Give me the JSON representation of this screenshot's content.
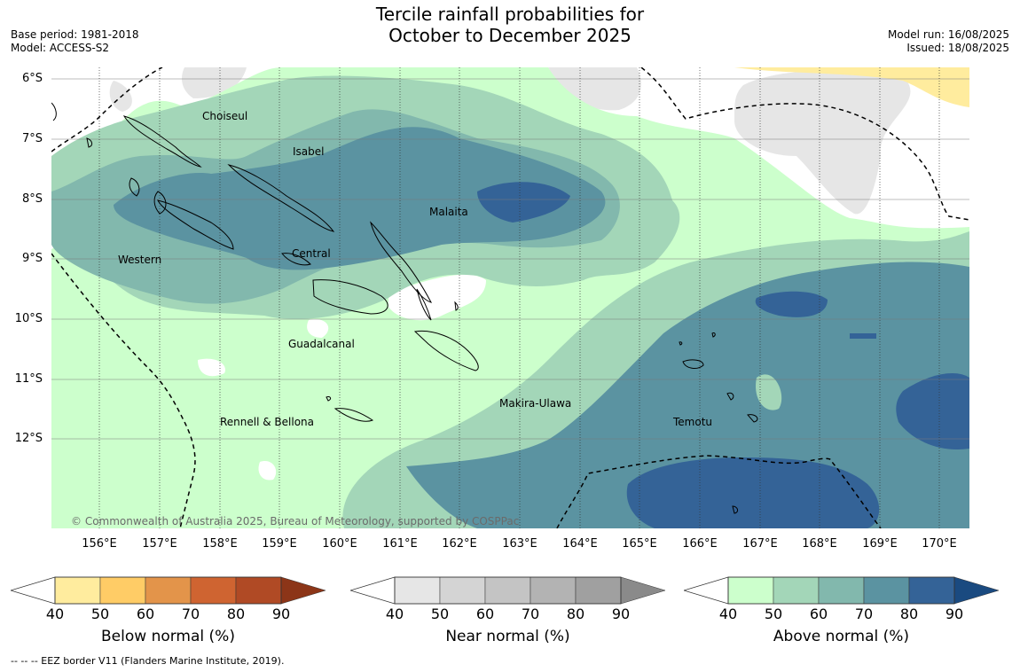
{
  "title_line1": "Tercile rainfall probabilities for",
  "title_line2": "October to December 2025",
  "base_period": "Base period: 1981-2018",
  "model": "Model: ACCESS-S2",
  "model_run": "Model run: 16/08/2025",
  "issued": "Issued: 18/08/2025",
  "lat_labels": [
    "6°S",
    "7°S",
    "8°S",
    "9°S",
    "10°S",
    "11°S",
    "12°S"
  ],
  "lon_labels": [
    "156°E",
    "157°E",
    "158°E",
    "159°E",
    "160°E",
    "161°E",
    "162°E",
    "163°E",
    "164°E",
    "165°E",
    "166°E",
    "167°E",
    "168°E",
    "169°E",
    "170°E"
  ],
  "regions": [
    "Choiseul",
    "Isabel",
    "Malaita",
    "Western",
    "Central",
    "Guadalcanal",
    "Makira-Ulawa",
    "Rennell & Bellona",
    "Temotu"
  ],
  "copyright": "© Commonwealth of Australia 2025, Bureau of Meteorology, supported by COSPPac",
  "colorbars": [
    {
      "title": "Below normal (%)",
      "ticks": [
        "40",
        "50",
        "60",
        "70",
        "80",
        "90"
      ],
      "colors": [
        "#ffec9e",
        "#ffcc66",
        "#e3944a",
        "#cf6431",
        "#b04a25",
        "#8c3518"
      ]
    },
    {
      "title": "Near normal (%)",
      "ticks": [
        "40",
        "50",
        "60",
        "70",
        "80",
        "90"
      ],
      "colors": [
        "#e6e6e6",
        "#d4d4d4",
        "#c4c4c4",
        "#b3b3b3",
        "#a0a0a0",
        "#8a8a8a"
      ]
    },
    {
      "title": "Above normal (%)",
      "ticks": [
        "40",
        "50",
        "60",
        "70",
        "80",
        "90"
      ],
      "colors": [
        "#ccffcc",
        "#a3d6b8",
        "#82b8ad",
        "#5b93a1",
        "#346397",
        "#1a4a80"
      ]
    }
  ],
  "footnote": "--  --  -- EEZ border V11 (Flanders Marine Institute, 2019)."
}
